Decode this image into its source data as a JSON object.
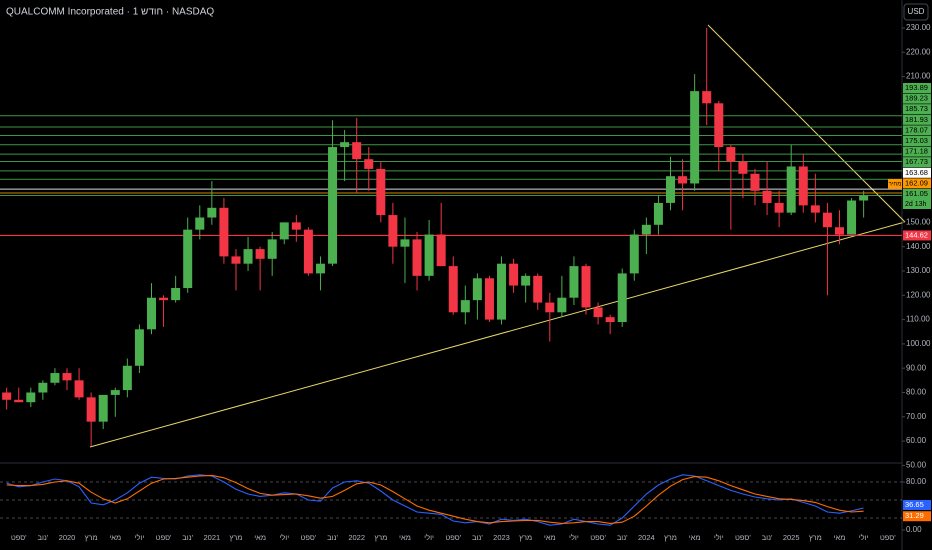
{
  "chart_data": {
    "type": "candlestick",
    "title": "QUALCOMM Incorporated · 1 חודש · NASDAQ",
    "currency": "USD",
    "price_tag": "מחיר",
    "countdown": "2d 13h",
    "up_color": "#4caf50",
    "down_color": "#f23645",
    "x_labels": [
      "ספט'",
      "נוב'",
      "2020",
      "מרץ",
      "מאי",
      "יולי",
      "ספט'",
      "נוב'",
      "2021",
      "מרץ",
      "מאי",
      "יולי",
      "ספט'",
      "נוב'",
      "2022",
      "מרץ",
      "מאי",
      "יולי",
      "ספט'",
      "נוב'",
      "2023",
      "מרץ",
      "מאי",
      "יולי",
      "ספט'",
      "נוב'",
      "2024",
      "מרץ",
      "מאי",
      "יולי",
      "ספט'",
      "נוב'",
      "2025",
      "מרץ",
      "מאי",
      "יולי",
      "ספט'"
    ],
    "open": [
      80,
      77,
      76,
      80,
      84,
      88,
      85,
      78,
      68,
      79,
      81,
      91,
      106,
      119,
      118,
      123,
      147,
      152,
      156,
      136,
      133,
      139,
      135,
      143,
      150,
      147,
      129,
      133,
      181,
      183,
      176,
      172,
      153,
      140,
      143,
      128,
      145,
      132,
      113,
      118,
      127,
      110,
      133,
      124,
      128,
      117,
      113,
      119,
      132,
      115,
      111,
      109,
      129,
      145,
      149,
      158,
      169,
      166,
      204,
      199,
      181,
      175,
      170,
      163,
      158,
      154,
      173,
      157,
      154,
      148,
      145,
      159
    ],
    "high": [
      82,
      82,
      82,
      85,
      90,
      90,
      90,
      80,
      79,
      82,
      94,
      108,
      125,
      120,
      128,
      152,
      157,
      167,
      160,
      139,
      144,
      140,
      146,
      150,
      153,
      148,
      136,
      192,
      188,
      193,
      181,
      175,
      158,
      152,
      146,
      151,
      158,
      136,
      124,
      129,
      128,
      136,
      135,
      129,
      129,
      121,
      128,
      136,
      133,
      117,
      112,
      131,
      147,
      152,
      161,
      177,
      176,
      211,
      230,
      200,
      182,
      178,
      172,
      175,
      163,
      182,
      178,
      170,
      158,
      155,
      160,
      163
    ],
    "low": [
      73,
      76,
      74,
      77,
      83,
      81,
      77,
      58,
      65,
      70,
      78,
      88,
      104,
      107,
      117,
      121,
      143,
      149,
      133,
      122,
      130,
      122,
      128,
      141,
      142,
      128,
      122,
      132,
      167,
      162,
      163,
      150,
      133,
      125,
      122,
      126,
      132,
      112,
      108,
      110,
      109,
      108,
      121,
      117,
      114,
      101,
      111,
      116,
      112,
      108,
      104,
      107,
      126,
      137,
      145,
      155,
      155,
      163,
      190,
      171,
      147,
      160,
      157,
      153,
      148,
      153,
      154,
      150,
      120,
      141,
      145,
      152
    ],
    "close": [
      77,
      76,
      80,
      84,
      88,
      85,
      78,
      68,
      79,
      81,
      91,
      106,
      119,
      118,
      123,
      147,
      152,
      156,
      136,
      133,
      139,
      135,
      143,
      150,
      147,
      129,
      133,
      181,
      183,
      176,
      172,
      153,
      140,
      143,
      128,
      145,
      132,
      113,
      118,
      127,
      110,
      133,
      124,
      128,
      117,
      113,
      119,
      132,
      115,
      111,
      109,
      129,
      145,
      149,
      158,
      169,
      166,
      204,
      199,
      181,
      175,
      170,
      163,
      158,
      154,
      173,
      157,
      154,
      148,
      145,
      159,
      161.05
    ],
    "ylim": [
      51.4,
      241.5
    ],
    "yticks": [
      {
        "value": 230,
        "label": "230.00"
      },
      {
        "value": 220,
        "label": "220.00"
      },
      {
        "value": 210,
        "label": "210.00"
      },
      {
        "value": 150,
        "label": "150.00"
      },
      {
        "value": 140,
        "label": "140.00"
      },
      {
        "value": 130,
        "label": "130.00"
      },
      {
        "value": 120,
        "label": "120.00"
      },
      {
        "value": 110,
        "label": "110.00"
      },
      {
        "value": 100,
        "label": "100.00"
      },
      {
        "value": 90,
        "label": "90.00"
      },
      {
        "value": 80,
        "label": "80.00"
      },
      {
        "value": 70,
        "label": "70.00"
      },
      {
        "value": 60,
        "label": "60.00"
      },
      {
        "value": 50,
        "label": "50.00"
      }
    ],
    "levels": [
      {
        "value": 193.89,
        "color": "#4caf50"
      },
      {
        "value": 189.23,
        "color": "#4caf50"
      },
      {
        "value": 185.73,
        "color": "#4caf50"
      },
      {
        "value": 181.93,
        "color": "#4caf50"
      },
      {
        "value": 178.07,
        "color": "#4caf50"
      },
      {
        "value": 175.03,
        "color": "#4caf50"
      },
      {
        "value": 171.18,
        "color": "#4caf50"
      },
      {
        "value": 167.73,
        "color": "#4caf50"
      },
      {
        "value": 163.68,
        "color": "#ffffff"
      },
      {
        "value": 162.09,
        "color": "#ff9800"
      },
      {
        "value": 161.05,
        "color": "#4caf50"
      }
    ],
    "support": {
      "value": 144.62,
      "color": "#f23645"
    },
    "oscillator": {
      "ylim": [
        0,
        100
      ],
      "yticks": [
        {
          "value": 80,
          "label": "80.00"
        },
        {
          "value": 0,
          "label": "0.00"
        }
      ],
      "bands": [
        80,
        50,
        20
      ],
      "series": [
        {
          "color": "#2962ff",
          "value_label": "36.65",
          "values": [
            78,
            72,
            74,
            80,
            85,
            82,
            72,
            45,
            42,
            50,
            62,
            78,
            88,
            86,
            85,
            90,
            92,
            90,
            80,
            68,
            60,
            56,
            58,
            62,
            60,
            50,
            48,
            70,
            80,
            82,
            78,
            65,
            50,
            40,
            30,
            28,
            26,
            15,
            12,
            14,
            10,
            18,
            16,
            18,
            14,
            8,
            10,
            18,
            14,
            10,
            8,
            20,
            40,
            60,
            75,
            85,
            92,
            90,
            82,
            74,
            66,
            60,
            55,
            52,
            50,
            52,
            46,
            40,
            30,
            28,
            32,
            36.65
          ]
        },
        {
          "color": "#ff6d00",
          "value_label": "31.29",
          "values": [
            75,
            74,
            74,
            76,
            80,
            82,
            78,
            63,
            52,
            45,
            52,
            65,
            78,
            85,
            86,
            88,
            90,
            91,
            87,
            79,
            69,
            61,
            58,
            59,
            60,
            57,
            53,
            56,
            66,
            77,
            80,
            75,
            64,
            52,
            40,
            33,
            28,
            23,
            18,
            14,
            12,
            14,
            15,
            16,
            16,
            13,
            11,
            12,
            14,
            14,
            11,
            13,
            23,
            40,
            58,
            73,
            84,
            89,
            88,
            82,
            74,
            67,
            60,
            56,
            52,
            51,
            49,
            46,
            39,
            33,
            30,
            31.29
          ]
        }
      ]
    }
  }
}
